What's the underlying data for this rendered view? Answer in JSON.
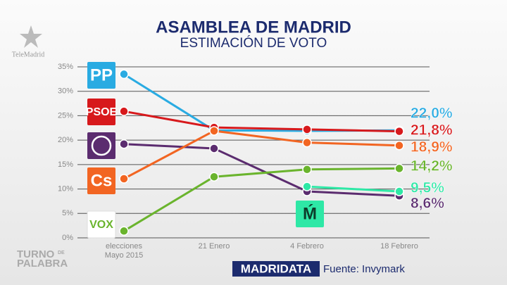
{
  "chart_data": {
    "type": "line",
    "title": "ASAMBLEA DE MADRID",
    "subtitle": "ESTIMACIÓN DE VOTO",
    "categories": [
      "elecciones\nMayo 2015",
      "21 Enero",
      "4 Febrero",
      "18 Febrero"
    ],
    "series": [
      {
        "name": "PP",
        "color": "#29abe2",
        "values": [
          33.5,
          22.0,
          21.9,
          22.0
        ],
        "value_labels": [
          null,
          null,
          null,
          "22,0%"
        ]
      },
      {
        "name": "PSOE",
        "color": "#d7191c",
        "values": [
          25.9,
          22.6,
          22.2,
          21.8
        ],
        "value_labels": [
          null,
          null,
          null,
          "21,8%"
        ]
      },
      {
        "name": null,
        "color": "#5b2c6f",
        "values": [
          19.2,
          18.3,
          9.5,
          8.6
        ],
        "value_labels": [
          null,
          null,
          null,
          "8,6%"
        ]
      },
      {
        "name": "Cs",
        "color": "#f26522",
        "values": [
          12.1,
          21.9,
          19.5,
          18.9
        ],
        "value_labels": [
          null,
          null,
          null,
          "18,9%"
        ]
      },
      {
        "name": "VOX",
        "color": "#6ab42d",
        "values": [
          1.4,
          12.5,
          14.0,
          14.2
        ],
        "value_labels": [
          null,
          null,
          null,
          "14,2%"
        ]
      },
      {
        "name": "Ḿ",
        "color": "#2ee8a6",
        "values": [
          null,
          null,
          10.5,
          9.5
        ],
        "value_labels": [
          null,
          null,
          null,
          "9,5%"
        ]
      }
    ],
    "ylim": [
      0,
      35
    ],
    "yticks": [
      {
        "value": 0,
        "label": "0%"
      },
      {
        "value": 5,
        "label": "5%"
      },
      {
        "value": 10,
        "label": "10%"
      },
      {
        "value": 15,
        "label": "15%"
      },
      {
        "value": 20,
        "label": "20%"
      },
      {
        "value": 25,
        "label": "25%"
      },
      {
        "value": 30,
        "label": "30%"
      },
      {
        "value": 35,
        "label": "35%"
      }
    ],
    "grid": true,
    "channel": "TeleMadrid",
    "program": [
      "TURNO",
      "DE",
      "PALABRA"
    ],
    "brand": "MADRIDATA",
    "source": "Fuente: Invymark"
  }
}
